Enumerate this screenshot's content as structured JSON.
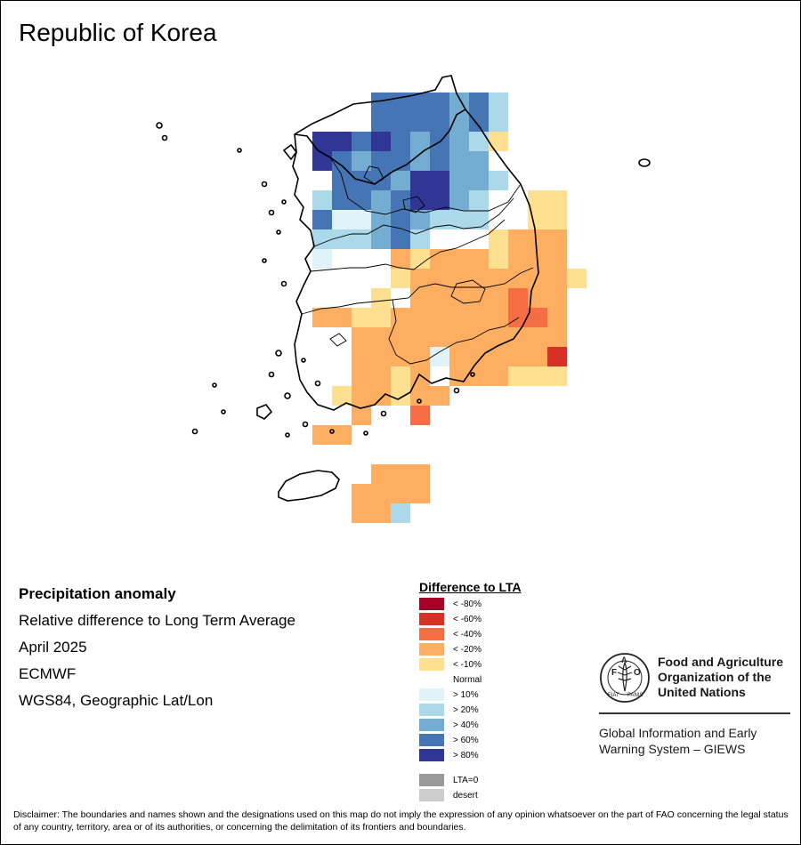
{
  "title": "Republic of Korea",
  "info": {
    "heading": "Precipitation anomaly",
    "subtitle": "Relative difference to Long Term Average",
    "period": "April 2025",
    "source": "ECMWF",
    "projection": "WGS84, Geographic Lat/Lon"
  },
  "legend": {
    "title": "Difference to LTA",
    "items": [
      {
        "label": "< -80%",
        "color": "#a50026"
      },
      {
        "label": "< -60%",
        "color": "#d73027"
      },
      {
        "label": "< -40%",
        "color": "#f46d43"
      },
      {
        "label": "< -20%",
        "color": "#fdae61"
      },
      {
        "label": "< -10%",
        "color": "#fee090"
      },
      {
        "label": "Normal",
        "color": "#ffffff"
      },
      {
        "label": "> 10%",
        "color": "#e0f3f8"
      },
      {
        "label": "> 20%",
        "color": "#abd9e9"
      },
      {
        "label": "> 40%",
        "color": "#74add1"
      },
      {
        "label": "> 60%",
        "color": "#4575b4"
      },
      {
        "label": "> 80%",
        "color": "#313695"
      },
      {
        "label": "LTA=0",
        "color": "#999999"
      },
      {
        "label": "desert",
        "color": "#cccccc"
      }
    ]
  },
  "organization": {
    "name": "Food and Agriculture Organization of the United Nations",
    "logo_text": "FAO",
    "logo_motto": "FIAT PANIS",
    "system": "Global Information and Early Warning System – GIEWS"
  },
  "disclaimer": "Disclaimer: The boundaries and names shown and the designations used on this map do not imply the expression of any opinion whatsoever on the part of FAO concerning the legal status of any country, territory, area or of its authorities, or concerning the delimitation of its frontiers and boundaries.",
  "anomaly_grid": {
    "code_key": {
      "A": "< -80%",
      "B": "< -60%",
      "C": "< -40%",
      "D": "< -20%",
      "E": "< -10%",
      "N": "Normal",
      "F": "> 10%",
      "G": "> 20%",
      "H": "> 40%",
      "I": "> 60%",
      "J": "> 80%"
    },
    "rows": [
      ".....IIIIHIG...",
      ".....IIIIHIGN..",
      "..JJIJIHIHGEN..",
      "..JIHIIHIHHNN..",
      "..NIIIHJJHHGN..",
      "..GIIHIJJHGNNEE",
      "..IFFHIHGGGNNEE",
      "..GGGHIGNNNEDDD",
      "..FNNNDEDDDEDDD",
      "..NNNNEDDDDDDDDE",
      "..NNNENDDDDDCDD",
      "..DDEEDDDDDDCCD",
      "..NNDDDDDDDDDDD",
      "..NNDDDDFDDDDDB",
      "..NNDDEDNDDDEEE",
      "..NEDDEDDNNN...",
      "....DNNCN......",
      "..DD...........",
      "...............",
      ".....DDD.......",
      "....DDDD.......",
      "....DDG........"
    ]
  }
}
